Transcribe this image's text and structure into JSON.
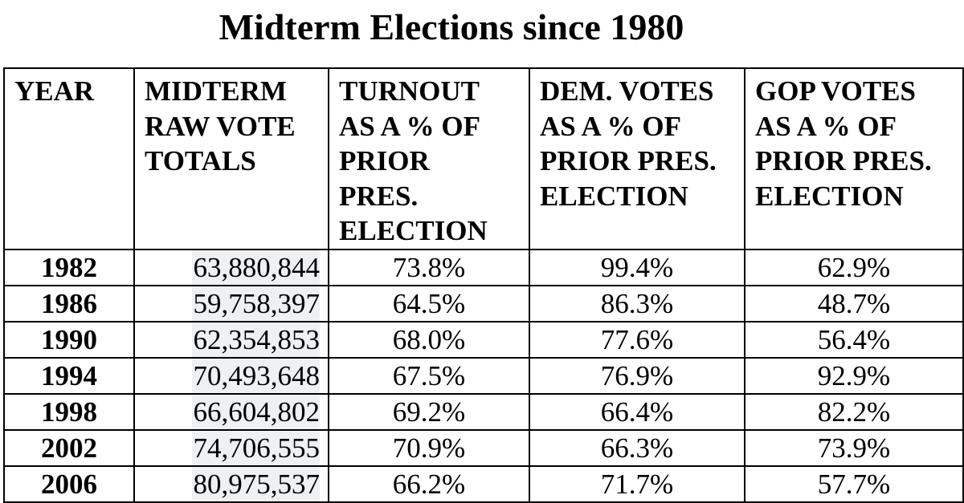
{
  "title": "Midterm Elections since 1980",
  "table": {
    "headers": [
      [
        "YEAR"
      ],
      [
        "MIDTERM",
        "RAW VOTE",
        "TOTALS"
      ],
      [
        "TURNOUT",
        "AS A % OF",
        "PRIOR",
        "PRES.",
        "ELECTION"
      ],
      [
        "DEM. VOTES",
        "AS A % OF",
        "PRIOR PRES.",
        "ELECTION"
      ],
      [
        "GOP VOTES",
        "AS A % OF",
        "PRIOR PRES.",
        "ELECTION"
      ]
    ],
    "rows": [
      [
        "1982",
        "63,880,844",
        "73.8%",
        "99.4%",
        "62.9%"
      ],
      [
        "1986",
        "59,758,397",
        "64.5%",
        "86.3%",
        "48.7%"
      ],
      [
        "1990",
        "62,354,853",
        "68.0%",
        "77.6%",
        "56.4%"
      ],
      [
        "1994",
        "70,493,648",
        "67.5%",
        "76.9%",
        "92.9%"
      ],
      [
        "1998",
        "66,604,802",
        "69.2%",
        "66.4%",
        "82.2%"
      ],
      [
        "2002",
        "74,706,555",
        "70.9%",
        "66.3%",
        "73.9%"
      ],
      [
        "2006",
        "80,975,537",
        "66.2%",
        "71.7%",
        "57.7%"
      ]
    ]
  }
}
